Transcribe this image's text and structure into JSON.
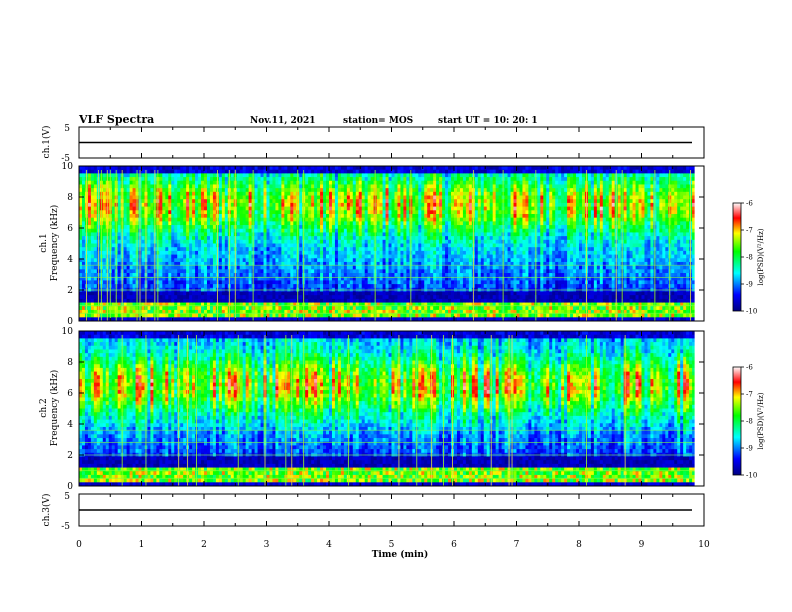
{
  "header": {
    "title": "VLF Spectra",
    "date": "Nov.11, 2021",
    "station": "station= MOS",
    "start": "start  UT =   10: 20: 1"
  },
  "chart_data": [
    {
      "type": "line",
      "name": "ch1-waveform",
      "ylabel": "ch.1(V)",
      "ylim": [
        -5,
        5
      ],
      "yticks": [
        "5",
        "-5"
      ],
      "x": [
        0,
        10
      ],
      "values": [
        0,
        0
      ]
    },
    {
      "type": "heatmap",
      "name": "ch1-spectrogram",
      "ylabel": "ch.1\nFrequency (kHz)",
      "ylabel_lines": [
        "ch.1",
        "Frequency (kHz)"
      ],
      "ylim": [
        0,
        10
      ],
      "yticks": [
        "10",
        "8",
        "6",
        "4",
        "2",
        "0"
      ],
      "xlim": [
        0,
        10
      ],
      "colorbar": {
        "label": "log(PSD)(V²/Hz)",
        "range": [
          -10,
          -6
        ],
        "ticks": [
          "-6",
          "-7",
          "-8",
          "-9",
          "-10"
        ]
      },
      "band_center_khz": 7.5
    },
    {
      "type": "heatmap",
      "name": "ch2-spectrogram",
      "ylabel": "ch.2\nFrequency (kHz)",
      "ylabel_lines": [
        "ch.2",
        "Frequency (kHz)"
      ],
      "ylim": [
        0,
        10
      ],
      "yticks": [
        "10",
        "8",
        "6",
        "4",
        "2",
        "0"
      ],
      "xlim": [
        0,
        10
      ],
      "colorbar": {
        "label": "log(PSD)(V²/Hz)",
        "range": [
          -10,
          -6
        ],
        "ticks": [
          "-6",
          "-7",
          "-8",
          "-9",
          "-10"
        ]
      },
      "band_center_khz": 6.5
    },
    {
      "type": "line",
      "name": "ch3-waveform",
      "ylabel": "ch.3(V)",
      "ylim": [
        -5,
        5
      ],
      "yticks": [
        "5",
        "-5"
      ],
      "x": [
        0,
        10
      ],
      "values": [
        0,
        0
      ]
    }
  ],
  "xaxis": {
    "label": "Time  (min)",
    "ticks": [
      "0",
      "1",
      "2",
      "3",
      "4",
      "5",
      "6",
      "7",
      "8",
      "9",
      "10"
    ]
  }
}
